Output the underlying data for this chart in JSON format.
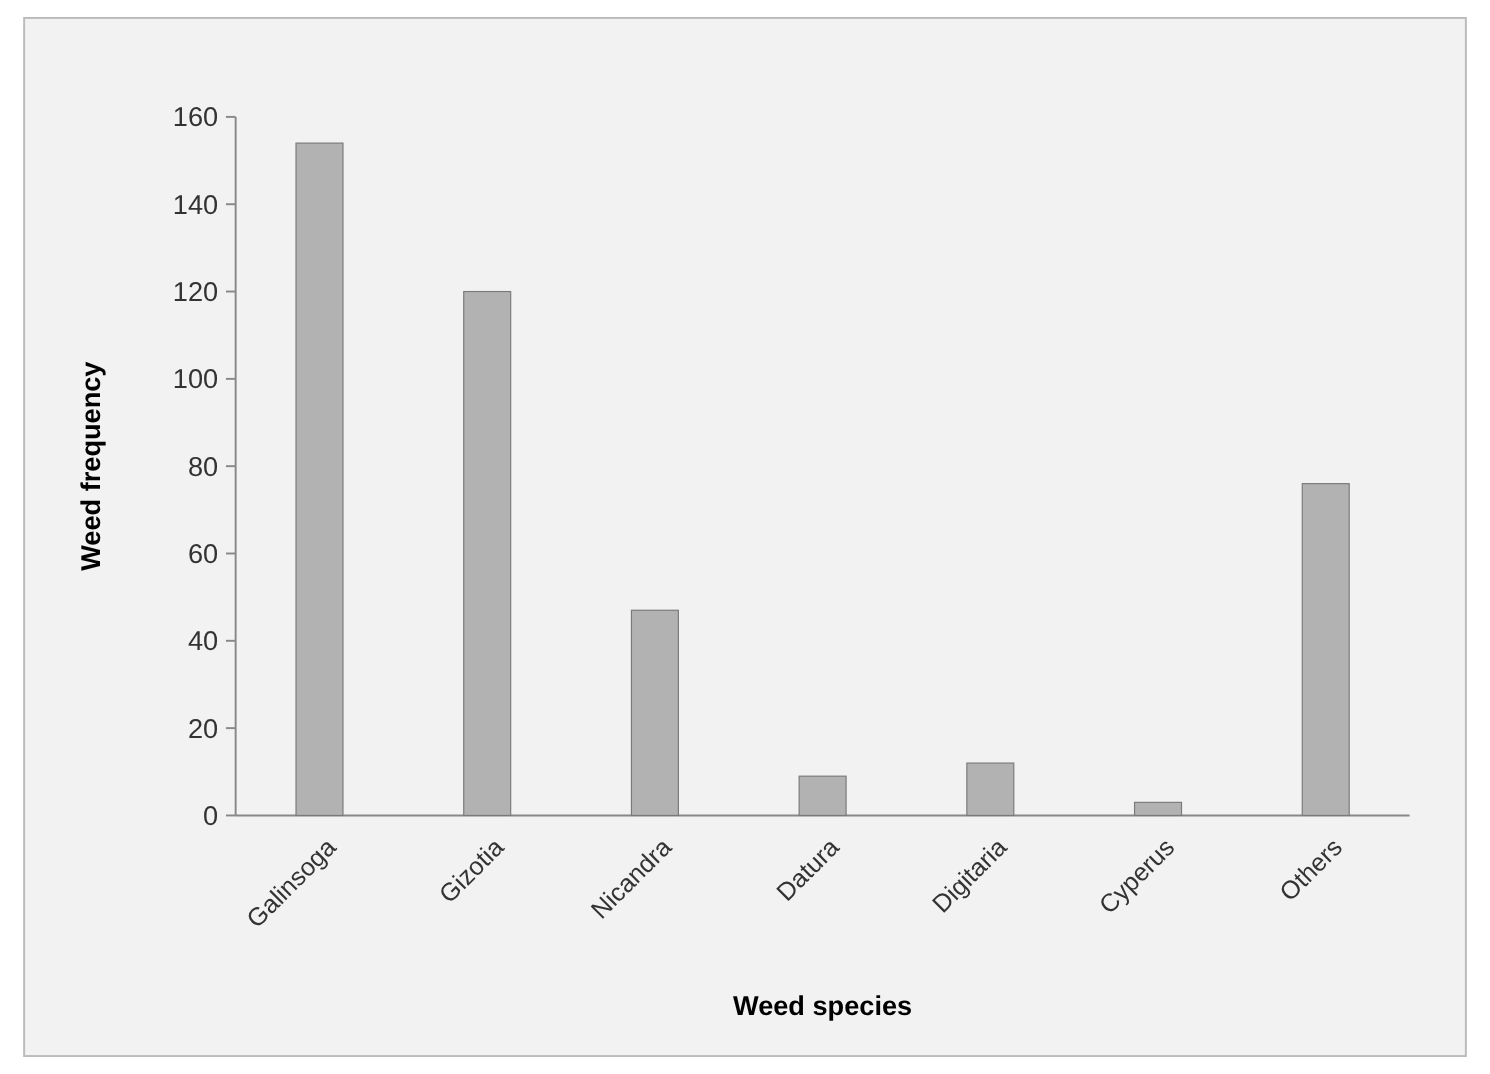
{
  "chart_data": {
    "type": "bar",
    "xlabel": "Weed species",
    "ylabel": "Weed frequency",
    "categories": [
      "Galinsoga",
      "Gizotia",
      "Nicandra",
      "Datura",
      "Digitaria",
      "Cyperus",
      "Others"
    ],
    "values": [
      154,
      120,
      47,
      9,
      12,
      3,
      76
    ],
    "color": "#b2b2b2",
    "ylim": [
      0,
      160
    ],
    "yticks": [
      0,
      20,
      40,
      60,
      80,
      100,
      120,
      140,
      160
    ],
    "grid": false
  }
}
